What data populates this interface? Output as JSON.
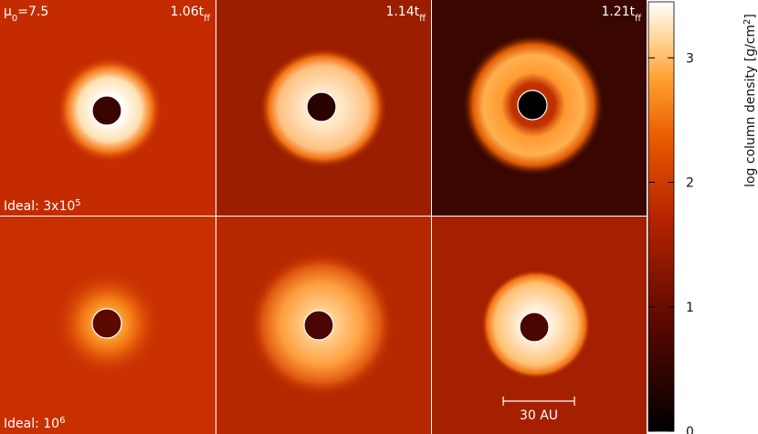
{
  "annotations": {
    "mu": {
      "symbol": "μ",
      "sub": "0",
      "text": "=7.5"
    },
    "times": [
      {
        "text": "1.06t",
        "sub": "ff"
      },
      {
        "text": "1.14t",
        "sub": "ff"
      },
      {
        "text": "1.21t",
        "sub": "ff"
      }
    ],
    "rows": [
      {
        "text": "Ideal: 3x10",
        "sup": "5"
      },
      {
        "text": "Ideal: 10",
        "sup": "6"
      }
    ],
    "scale_bar": "30 AU"
  },
  "colorbar": {
    "label": {
      "text": "log column density [g/cm",
      "sup": "2",
      "end": "]"
    },
    "lim": [
      0,
      3.45
    ],
    "ticks": [
      0,
      1,
      2,
      3
    ]
  }
}
